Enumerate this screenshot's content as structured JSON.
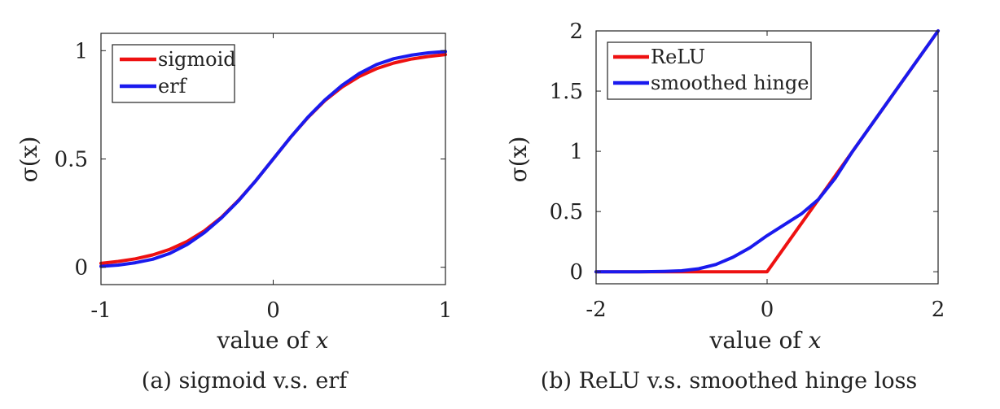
{
  "chart_data": [
    {
      "type": "line",
      "caption": "(a) sigmoid v.s. erf",
      "xlabel": "value of",
      "xlabel_var": "x",
      "ylabel": "σ(x)",
      "xlim": [
        -1,
        1
      ],
      "ylim": [
        -0.08,
        1.08
      ],
      "xticks": [
        -1,
        0,
        1
      ],
      "xtick_labels": [
        "-1",
        "0",
        "1"
      ],
      "yticks": [
        0,
        0.5,
        1
      ],
      "ytick_labels": [
        "0",
        "0.5",
        "1"
      ],
      "legend_position": "top-left",
      "series": [
        {
          "name": "sigmoid",
          "color": "#ee1111",
          "x": [
            -1,
            -0.9,
            -0.8,
            -0.7,
            -0.6,
            -0.5,
            -0.4,
            -0.3,
            -0.2,
            -0.1,
            0,
            0.1,
            0.2,
            0.3,
            0.4,
            0.5,
            0.6,
            0.7,
            0.8,
            0.9,
            1
          ],
          "y": [
            0.018,
            0.027,
            0.039,
            0.057,
            0.083,
            0.119,
            0.168,
            0.231,
            0.31,
            0.401,
            0.5,
            0.599,
            0.69,
            0.769,
            0.832,
            0.881,
            0.917,
            0.943,
            0.961,
            0.973,
            0.982
          ]
        },
        {
          "name": "erf",
          "color": "#1a1aee",
          "x": [
            -1,
            -0.9,
            -0.8,
            -0.7,
            -0.6,
            -0.5,
            -0.4,
            -0.3,
            -0.2,
            -0.1,
            0,
            0.1,
            0.2,
            0.3,
            0.4,
            0.5,
            0.6,
            0.7,
            0.8,
            0.9,
            1
          ],
          "y": [
            0.004,
            0.01,
            0.021,
            0.037,
            0.064,
            0.105,
            0.16,
            0.228,
            0.308,
            0.401,
            0.5,
            0.599,
            0.692,
            0.772,
            0.84,
            0.895,
            0.936,
            0.963,
            0.979,
            0.99,
            0.996
          ]
        }
      ]
    },
    {
      "type": "line",
      "caption": "(b) ReLU v.s. smoothed hinge loss",
      "xlabel": "value of",
      "xlabel_var": "x",
      "ylabel": "σ(x)",
      "xlim": [
        -2,
        2
      ],
      "ylim": [
        -0.1,
        2
      ],
      "xticks": [
        -2,
        0,
        2
      ],
      "xtick_labels": [
        "-2",
        "0",
        "2"
      ],
      "yticks": [
        0,
        0.5,
        1,
        1.5,
        2
      ],
      "ytick_labels": [
        "0",
        "0.5",
        "1",
        "1.5",
        "2"
      ],
      "legend_position": "top-left",
      "series": [
        {
          "name": "ReLU",
          "color": "#ee1111",
          "x": [
            -2,
            0,
            2
          ],
          "y": [
            0,
            0,
            2
          ]
        },
        {
          "name": "smoothed hinge",
          "color": "#1a1aee",
          "x": [
            -2,
            -1.5,
            -1.2,
            -1.0,
            -0.8,
            -0.6,
            -0.4,
            -0.2,
            0,
            0.2,
            0.4,
            0.6,
            0.8,
            1.0,
            1.5,
            2
          ],
          "y": [
            0,
            0,
            0.003,
            0.008,
            0.025,
            0.06,
            0.12,
            0.2,
            0.3,
            0.39,
            0.48,
            0.6,
            0.78,
            1.0,
            1.5,
            2
          ]
        }
      ]
    }
  ]
}
